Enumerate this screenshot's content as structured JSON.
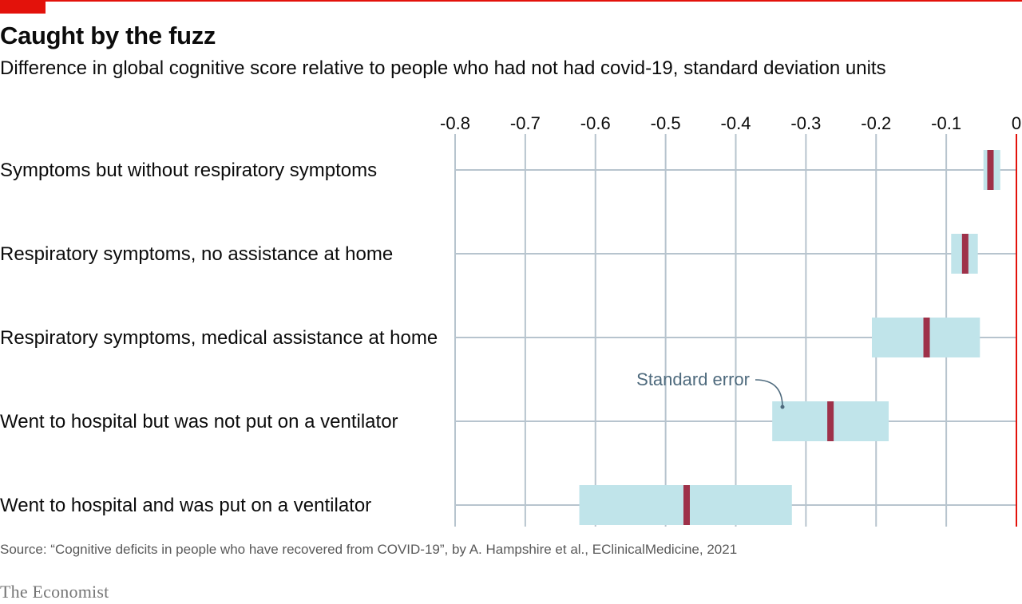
{
  "title": "Caught by the fuzz",
  "subtitle": "Difference in global cognitive score relative to people who had not had covid-19, standard deviation units",
  "source": "Source: “Cognitive deficits in people who have recovered from COVID-19”, by A. Hampshire et al., EClinicalMedicine, 2021",
  "brand": "The Economist",
  "colors": {
    "accent_red": "#e3120b",
    "estimate": "#9e3149",
    "band": "#c0e4ea",
    "grid": "#b7c4ce",
    "annotation": "#4e6a7d"
  },
  "chart_data": {
    "type": "bar",
    "orientation": "horizontal",
    "xlim": [
      -0.8,
      0
    ],
    "xticks": [
      "-0.8",
      "-0.7",
      "-0.6",
      "-0.5",
      "-0.4",
      "-0.3",
      "-0.2",
      "-0.1",
      "0"
    ],
    "xtick_values": [
      -0.8,
      -0.7,
      -0.6,
      -0.5,
      -0.4,
      -0.3,
      -0.2,
      -0.1,
      0
    ],
    "tick_position": "top",
    "grid": true,
    "categories": [
      "Symptoms but without respiratory symptoms",
      "Respiratory symptoms, no assistance at home",
      "Respiratory symptoms, medical assistance at home",
      "Went to hospital but was not put on a ventilator",
      "Went to hospital and was put on a ventilator"
    ],
    "series": [
      {
        "name": "Standard error",
        "low": [
          -0.047,
          -0.093,
          -0.206,
          -0.348,
          -0.623
        ],
        "high": [
          -0.023,
          -0.055,
          -0.052,
          -0.182,
          -0.32
        ]
      },
      {
        "values": [
          -0.037,
          -0.073,
          -0.128,
          -0.265,
          -0.47
        ]
      }
    ],
    "annotations": [
      {
        "text": "Standard error",
        "target_category": "Went to hospital but was not put on a ventilator"
      }
    ]
  }
}
